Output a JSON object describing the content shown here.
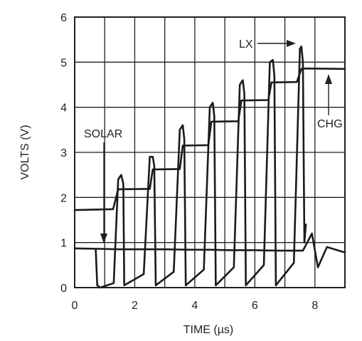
{
  "chart_data": {
    "type": "line",
    "xlabel": "TIME (µs)",
    "ylabel": "VOLTS (V)",
    "xlim": [
      0,
      9
    ],
    "ylim": [
      0,
      6
    ],
    "x_ticks": [
      0,
      2,
      4,
      6,
      8
    ],
    "y_ticks": [
      0,
      1,
      2,
      3,
      4,
      5,
      6
    ],
    "grid": true,
    "series": [
      {
        "name": "SOLAR",
        "x": [
          0,
          0.8,
          1.5,
          2.2,
          3,
          3.8,
          4.5,
          5.2,
          6,
          6.8,
          7.6,
          7.9,
          8.1,
          8.4,
          9
        ],
        "y": [
          0.87,
          0.86,
          0.85,
          0.85,
          0.85,
          0.84,
          0.84,
          0.83,
          0.83,
          0.82,
          0.82,
          1.2,
          0.45,
          0.9,
          0.78
        ]
      },
      {
        "name": "CHG",
        "x": [
          0,
          1.28,
          1.45,
          2.5,
          2.6,
          3.5,
          3.6,
          4.45,
          4.55,
          5.45,
          5.55,
          6.45,
          6.55,
          7.4,
          7.55,
          7.7,
          9
        ],
        "y": [
          1.72,
          1.74,
          2.18,
          2.19,
          2.62,
          2.63,
          3.15,
          3.16,
          3.68,
          3.69,
          4.15,
          4.16,
          4.55,
          4.56,
          4.85,
          4.86,
          4.85
        ]
      },
      {
        "name": "LX",
        "x": [
          0.7,
          0.75,
          0.85,
          1.3,
          1.45,
          1.55,
          1.62,
          1.65,
          2.3,
          2.5,
          2.6,
          2.65,
          2.7,
          3.3,
          3.5,
          3.6,
          3.65,
          3.7,
          4.3,
          4.5,
          4.6,
          4.65,
          4.7,
          5.3,
          5.5,
          5.6,
          5.65,
          5.7,
          6.3,
          6.5,
          6.6,
          6.65,
          6.7,
          7.3,
          7.5,
          7.55,
          7.6,
          7.65,
          7.7
        ],
        "y": [
          0.85,
          0.05,
          0.0,
          0.1,
          2.4,
          2.5,
          2.3,
          0.05,
          0.3,
          2.9,
          2.9,
          2.7,
          0.05,
          0.35,
          3.5,
          3.6,
          3.3,
          0.05,
          0.4,
          4.0,
          4.1,
          3.8,
          0.05,
          0.45,
          4.5,
          4.6,
          4.3,
          0.05,
          0.5,
          5.0,
          5.05,
          4.7,
          0.05,
          0.55,
          5.3,
          5.35,
          5.0,
          1.0,
          1.4
        ]
      }
    ],
    "annotations": [
      {
        "text": "LX"
      },
      {
        "text": "SOLAR"
      },
      {
        "text": "CHG"
      }
    ]
  }
}
